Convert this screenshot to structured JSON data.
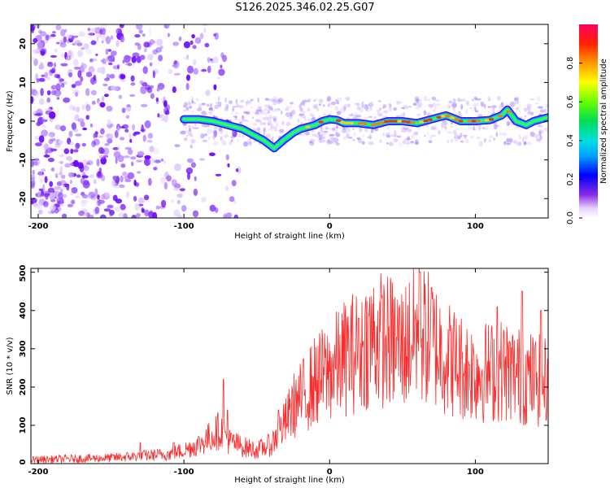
{
  "title": "S126.2025.346.02.25.G07",
  "chart_data": [
    {
      "type": "heatmap",
      "name": "spectrogram",
      "xlabel": "Height of straight line (km)",
      "ylabel": "Frequency (Hz)",
      "xlim": [
        -205,
        150
      ],
      "ylim": [
        -25,
        25
      ],
      "x_ticks": [
        -200,
        -100,
        0,
        100
      ],
      "x_tick_labels": [
        "-200",
        "-100",
        "0",
        "100"
      ],
      "y_ticks": [
        20,
        10,
        0,
        -10,
        -20
      ],
      "y_tick_labels": [
        "20",
        "10",
        "0",
        "-10",
        "-20"
      ],
      "ridge": {
        "x": [
          -100,
          -90,
          -80,
          -70,
          -60,
          -50,
          -45,
          -38,
          -32,
          -25,
          -20,
          -15,
          -10,
          -5,
          0,
          5,
          10,
          20,
          30,
          40,
          50,
          60,
          70,
          80,
          90,
          100,
          110,
          118,
          122,
          128,
          135,
          140,
          150
        ],
        "y": [
          0.5,
          0.5,
          0,
          -1,
          -2,
          -4,
          -5,
          -7,
          -5,
          -3,
          -2,
          -1.5,
          -1,
          0,
          0.5,
          0.3,
          -0.5,
          -0.5,
          -1,
          0,
          0,
          -0.5,
          0.5,
          1.5,
          0,
          0,
          0.3,
          1.5,
          3,
          0,
          -1,
          0,
          1
        ]
      },
      "noise_region_km": [
        -205,
        -95
      ],
      "colorbar": {
        "label": "Normalized spectral amplitude",
        "range": [
          0.0,
          1.0
        ],
        "ticks": [
          0.0,
          0.2,
          0.4,
          0.6,
          0.8
        ],
        "tick_labels": [
          "0.0",
          "0.2",
          "0.4",
          "0.6",
          "0.8"
        ]
      }
    },
    {
      "type": "line",
      "name": "snr",
      "xlabel": "Height of straight line (km)",
      "ylabel": "SNR (10 * v/v)",
      "xlim": [
        -205,
        150
      ],
      "ylim": [
        0,
        510
      ],
      "x_ticks": [
        -200,
        -100,
        0,
        100
      ],
      "x_tick_labels": [
        "-200",
        "-100",
        "0",
        "100"
      ],
      "y_ticks": [
        0,
        100,
        200,
        300,
        400,
        500
      ],
      "y_tick_labels": [
        "0",
        "100",
        "200",
        "300",
        "400",
        "500"
      ],
      "color": "#ff2a2a",
      "envelope_x": [
        -205,
        -150,
        -130,
        -110,
        -100,
        -90,
        -80,
        -75,
        -70,
        -60,
        -50,
        -40,
        -30,
        -25,
        -20,
        -10,
        0,
        10,
        20,
        30,
        40,
        50,
        60,
        70,
        80,
        90,
        100,
        110,
        120,
        130,
        140,
        150
      ],
      "envelope_y": [
        10,
        15,
        20,
        25,
        35,
        50,
        75,
        90,
        60,
        45,
        35,
        50,
        110,
        150,
        170,
        215,
        240,
        275,
        300,
        330,
        320,
        305,
        345,
        320,
        280,
        255,
        240,
        240,
        245,
        230,
        220,
        210
      ],
      "peaks": [
        {
          "x": -130,
          "y": 55
        },
        {
          "x": -107,
          "y": 55
        },
        {
          "x": -73,
          "y": 220
        },
        {
          "x": -70,
          "y": 140
        },
        {
          "x": -35,
          "y": 140
        },
        {
          "x": 20,
          "y": 380
        },
        {
          "x": 62,
          "y": 500
        },
        {
          "x": 70,
          "y": 460
        },
        {
          "x": 115,
          "y": 410
        },
        {
          "x": 132,
          "y": 450
        },
        {
          "x": 145,
          "y": 400
        }
      ]
    }
  ]
}
